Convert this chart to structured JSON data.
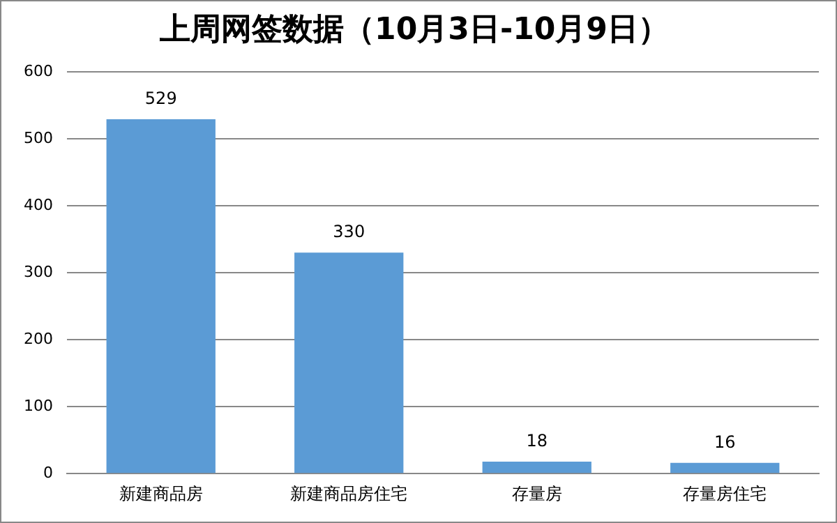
{
  "chart_data": {
    "type": "bar",
    "title": "上周网签数据（10月3日-10月9日）",
    "categories": [
      "新建商品房",
      "新建商品房住宅",
      "存量房",
      "存量房住宅"
    ],
    "values": [
      529,
      330,
      18,
      16
    ],
    "color": "#5b9bd5",
    "ylim": [
      0,
      600
    ],
    "yticks": [
      0,
      100,
      200,
      300,
      400,
      500,
      600
    ],
    "grid": "y",
    "data_labels": true
  }
}
